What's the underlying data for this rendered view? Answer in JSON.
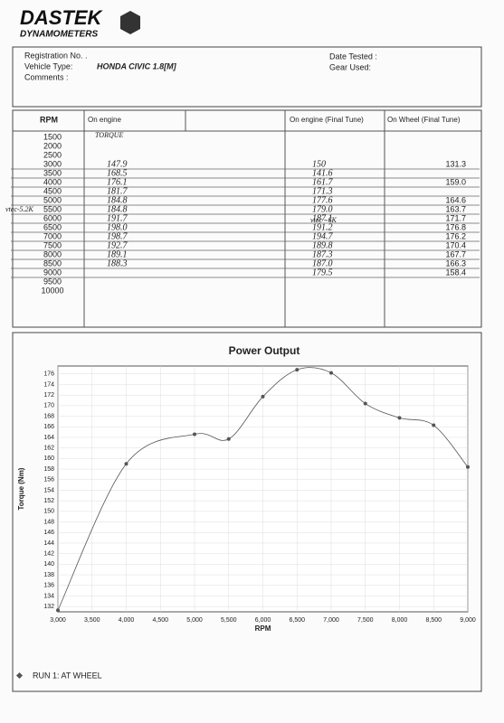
{
  "logo": {
    "brand": "DASTEK",
    "subtitle": "DYNAMOMETERS"
  },
  "info": {
    "registration": "Registration No. .",
    "vehicle_label": "Vehicle Type:",
    "vehicle": "HONDA CIVIC 1.8[M]",
    "comments": "Comments :",
    "date_tested": "Date Tested :",
    "gear_used": "Gear Used:"
  },
  "table": {
    "headers": [
      "RPM",
      "On engine",
      "On engine (Final Tune)",
      "On Wheel (Final Tune)"
    ],
    "note": "TORQUE",
    "rows": [
      [
        "1500",
        null,
        null,
        null
      ],
      [
        "2000",
        null,
        null,
        null
      ],
      [
        "2500",
        null,
        null,
        null
      ],
      [
        "3000",
        "147.9",
        "150",
        "131.3"
      ],
      [
        "3500",
        "168.5",
        "141.6",
        null
      ],
      [
        "4000",
        "176.1",
        "161.7",
        "159.0"
      ],
      [
        "4500",
        "181.7",
        "171.3",
        null
      ],
      [
        "5000",
        "184.8",
        "177.6",
        "164.6"
      ],
      [
        "5500",
        "184.8",
        "179.0",
        "163.7"
      ],
      [
        "6000",
        "191.7",
        "187.1",
        "171.7"
      ],
      [
        "6500",
        "198.0",
        "191.2",
        "176.8"
      ],
      [
        "7000",
        "198.7",
        "194.7",
        "176.2"
      ],
      [
        "7500",
        "192.7",
        "189.8",
        "170.4"
      ],
      [
        "8000",
        "189.1",
        "187.3",
        "167.7"
      ],
      [
        "8500",
        "188.3",
        "187.0",
        "166.3"
      ],
      [
        "9000",
        null,
        "179.5",
        "158.4"
      ],
      [
        "9500",
        null,
        null,
        null
      ],
      [
        "10000",
        null,
        null,
        null
      ]
    ],
    "annotations": [
      "vtec-5.2K",
      "vtec - 6K"
    ]
  },
  "chart_data": {
    "type": "line",
    "title": "Power Output",
    "x_label": "RPM",
    "y_label": "Torque (Nm)",
    "x": [
      3000,
      4000,
      5000,
      5500,
      6000,
      6500,
      7000,
      7500,
      8000,
      8500,
      9000
    ],
    "series": [
      {
        "name": "RUN 1: AT WHEEL",
        "color": "#555555",
        "values": [
          131.3,
          159.0,
          164.6,
          163.7,
          171.7,
          176.8,
          176.2,
          170.4,
          167.7,
          166.3,
          158.4
        ]
      }
    ],
    "xlim": [
      3000,
      9000
    ],
    "xticks": [
      {
        "value": 3000,
        "label": "3,000"
      },
      {
        "value": 3500,
        "label": "3,500"
      },
      {
        "value": 4000,
        "label": "4,000"
      },
      {
        "value": 4500,
        "label": "4,500"
      },
      {
        "value": 5000,
        "label": "5,000"
      },
      {
        "value": 5500,
        "label": "5,500"
      },
      {
        "value": 6000,
        "label": "6,000"
      },
      {
        "value": 6500,
        "label": "6,500"
      },
      {
        "value": 7000,
        "label": "7,000"
      },
      {
        "value": 7500,
        "label": "7,500"
      },
      {
        "value": 8000,
        "label": "8,000"
      },
      {
        "value": 8500,
        "label": "8,500"
      },
      {
        "value": 9000,
        "label": "9,000"
      }
    ],
    "ylim": [
      131,
      177.5
    ],
    "yticks": [
      132,
      134,
      136,
      138,
      140,
      142,
      144,
      146,
      148,
      150,
      152,
      154,
      156,
      158,
      160,
      162,
      164,
      166,
      168,
      170,
      172,
      174,
      176
    ],
    "grid": true
  }
}
